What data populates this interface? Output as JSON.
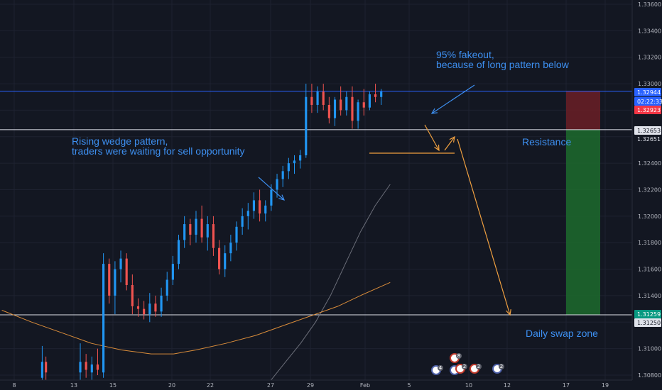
{
  "chart_data": {
    "type": "candlestick",
    "y_axis": {
      "ticks": [
        "1.33600",
        "1.33400",
        "1.33200",
        "1.33000",
        "1.32800",
        "1.32600",
        "1.32400",
        "1.32200",
        "1.32000",
        "1.31800",
        "1.31600",
        "1.31400",
        "1.31200",
        "1.31000",
        "1.30800"
      ],
      "range": [
        1.3076,
        1.337
      ]
    },
    "x_axis": {
      "ticks": [
        "8",
        "13",
        "15",
        "20",
        "22",
        "27",
        "29",
        "Feb",
        "5",
        "10",
        "12",
        "17",
        "19"
      ]
    },
    "price_labels": {
      "current": "1.32944",
      "countdown": "02:22:33",
      "bid": "1.32923",
      "resistance_a": "1.32653",
      "resistance_b": "1.32651",
      "swap_a": "1.31259",
      "swap_b": "1.31250"
    },
    "horizontal_lines": [
      {
        "name": "current-price-line",
        "value": 1.32944,
        "color": "#2962ff"
      },
      {
        "name": "resistance-line",
        "value": 1.32653,
        "color": "#e0e3eb"
      },
      {
        "name": "swap-zone-line",
        "value": 1.31255,
        "color": "#e0e3eb"
      }
    ],
    "candles_visible": 113,
    "candles_from_slot": 21,
    "candles": [
      [
        1.3082,
        1.3104,
        1.3076,
        1.309
      ],
      [
        1.309,
        1.3096,
        1.3078,
        1.3084
      ],
      [
        1.3082,
        1.3094,
        1.3076,
        1.3088
      ],
      [
        1.3088,
        1.31,
        1.308,
        1.3084
      ],
      [
        1.3082,
        1.3172,
        1.3078,
        1.3164
      ],
      [
        1.3164,
        1.3168,
        1.3134,
        1.314
      ],
      [
        1.314,
        1.3166,
        1.3126,
        1.316
      ],
      [
        1.316,
        1.3174,
        1.315,
        1.3168
      ],
      [
        1.3168,
        1.3172,
        1.3144,
        1.3148
      ],
      [
        1.3148,
        1.3156,
        1.3126,
        1.3132
      ],
      [
        1.3132,
        1.3138,
        1.3124,
        1.313
      ],
      [
        1.313,
        1.3136,
        1.3122,
        1.3126
      ],
      [
        1.3126,
        1.3142,
        1.312,
        1.3134
      ],
      [
        1.3134,
        1.314,
        1.3124,
        1.3128
      ],
      [
        1.3128,
        1.3146,
        1.3124,
        1.314
      ],
      [
        1.314,
        1.3158,
        1.3136,
        1.3152
      ],
      [
        1.3152,
        1.317,
        1.3148,
        1.3164
      ],
      [
        1.3164,
        1.3186,
        1.316,
        1.3182
      ],
      [
        1.3182,
        1.32,
        1.3176,
        1.3194
      ],
      [
        1.3194,
        1.3198,
        1.3178,
        1.3186
      ],
      [
        1.3186,
        1.3204,
        1.318,
        1.3198
      ],
      [
        1.3198,
        1.3208,
        1.318,
        1.3184
      ],
      [
        1.3184,
        1.32,
        1.3174,
        1.3194
      ],
      [
        1.3194,
        1.32,
        1.317,
        1.3176
      ],
      [
        1.3176,
        1.3182,
        1.3156,
        1.316
      ],
      [
        1.316,
        1.3178,
        1.3154,
        1.3172
      ],
      [
        1.3172,
        1.3186,
        1.3166,
        1.318
      ],
      [
        1.318,
        1.3196,
        1.3174,
        1.3192
      ],
      [
        1.3192,
        1.3206,
        1.3186,
        1.32
      ],
      [
        1.32,
        1.321,
        1.319,
        1.3204
      ],
      [
        1.3204,
        1.3218,
        1.3198,
        1.3212
      ],
      [
        1.3212,
        1.322,
        1.3196,
        1.3202
      ],
      [
        1.3202,
        1.3212,
        1.3196,
        1.3208
      ],
      [
        1.3208,
        1.3224,
        1.3204,
        1.322
      ],
      [
        1.322,
        1.3232,
        1.3214,
        1.3228
      ],
      [
        1.3228,
        1.3238,
        1.3222,
        1.3234
      ],
      [
        1.3234,
        1.3244,
        1.3228,
        1.324
      ],
      [
        1.324,
        1.3246,
        1.3232,
        1.3242
      ],
      [
        1.3242,
        1.325,
        1.3236,
        1.3246
      ],
      [
        1.3246,
        1.33,
        1.3244,
        1.329
      ],
      [
        1.329,
        1.33,
        1.3278,
        1.3284
      ],
      [
        1.3284,
        1.3298,
        1.3278,
        1.3294
      ],
      [
        1.3294,
        1.33,
        1.328,
        1.3284
      ],
      [
        1.3284,
        1.329,
        1.327,
        1.3274
      ],
      [
        1.3274,
        1.329,
        1.3268,
        1.3288
      ],
      [
        1.3288,
        1.3298,
        1.3276,
        1.328
      ],
      [
        1.328,
        1.3294,
        1.3276,
        1.329
      ],
      [
        1.329,
        1.3298,
        1.3266,
        1.3272
      ],
      [
        1.3272,
        1.3288,
        1.3266,
        1.3286
      ],
      [
        1.3286,
        1.3296,
        1.3276,
        1.3282
      ],
      [
        1.3282,
        1.3294,
        1.328,
        1.3292
      ],
      [
        1.3292,
        1.33,
        1.3286,
        1.329
      ],
      [
        1.329,
        1.3296,
        1.3284,
        1.3294
      ]
    ],
    "moving_averages": [
      {
        "name": "MA fast",
        "color": "#6b6e79",
        "points": [
          [
            72,
            1.3076
          ],
          [
            76,
            1.309
          ],
          [
            80,
            1.3104
          ],
          [
            84,
            1.312
          ],
          [
            88,
            1.314
          ],
          [
            92,
            1.3164
          ],
          [
            96,
            1.3188
          ],
          [
            100,
            1.3208
          ],
          [
            104,
            1.3224
          ]
        ]
      },
      {
        "name": "MA slow",
        "color": "#d98c3a",
        "points": [
          [
            0,
            1.3129
          ],
          [
            8,
            1.312
          ],
          [
            16,
            1.3112
          ],
          [
            24,
            1.3104
          ],
          [
            32,
            1.3099
          ],
          [
            40,
            1.3096
          ],
          [
            46,
            1.3096
          ],
          [
            52,
            1.3099
          ],
          [
            60,
            1.3104
          ],
          [
            68,
            1.311
          ],
          [
            76,
            1.3118
          ],
          [
            84,
            1.3126
          ],
          [
            90,
            1.3132
          ],
          [
            96,
            1.314
          ],
          [
            104,
            1.315
          ]
        ]
      }
    ],
    "annotations": [
      {
        "text": "95% fakeout,",
        "line2": "because of long pattern below"
      },
      {
        "text": "Rising wedge pattern,",
        "line2": "traders were waiting for sell opportunity"
      },
      {
        "text": "Resistance"
      },
      {
        "text": "Daily swap zone"
      }
    ],
    "event_badges": [
      "4",
      "3",
      "2",
      "2",
      "2",
      "8"
    ],
    "colors": {
      "up": "#2196f3",
      "down": "#ef5350",
      "background": "#131722",
      "grid": "#1e2230",
      "annotation": "#3d8ff0",
      "arrow_orange": "#f0a040",
      "profit_zone": "#1d6b2d",
      "stop_zone": "#6b1e26"
    }
  }
}
